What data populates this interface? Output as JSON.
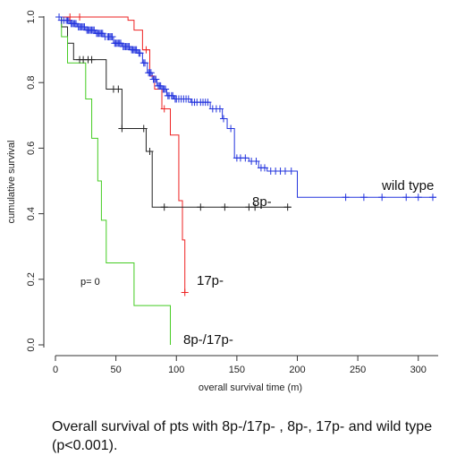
{
  "chart_data": {
    "type": "line",
    "title": "",
    "xlabel": "overall survival time (m)",
    "ylabel": "cumulative survival",
    "xlim": [
      0,
      320
    ],
    "ylim": [
      0,
      1.0
    ],
    "x_ticks": [
      "0",
      "50",
      "100",
      "150",
      "200",
      "250",
      "300"
    ],
    "y_ticks": [
      "0.0",
      "0.2",
      "0.4",
      "0.6",
      "0.8",
      "1.0"
    ],
    "grid": false,
    "annotation": "p= 0",
    "series": [
      {
        "name": "wild type",
        "color": "#2233dd",
        "steps": [
          [
            0,
            1.0
          ],
          [
            5,
            0.99
          ],
          [
            12,
            0.98
          ],
          [
            18,
            0.97
          ],
          [
            25,
            0.96
          ],
          [
            33,
            0.95
          ],
          [
            40,
            0.94
          ],
          [
            48,
            0.92
          ],
          [
            55,
            0.91
          ],
          [
            62,
            0.9
          ],
          [
            68,
            0.89
          ],
          [
            72,
            0.86
          ],
          [
            76,
            0.83
          ],
          [
            80,
            0.81
          ],
          [
            84,
            0.79
          ],
          [
            88,
            0.78
          ],
          [
            92,
            0.76
          ],
          [
            98,
            0.75
          ],
          [
            112,
            0.74
          ],
          [
            128,
            0.72
          ],
          [
            138,
            0.69
          ],
          [
            142,
            0.66
          ],
          [
            148,
            0.57
          ],
          [
            160,
            0.56
          ],
          [
            168,
            0.54
          ],
          [
            175,
            0.53
          ],
          [
            200,
            0.45
          ],
          [
            315,
            0.45
          ]
        ],
        "censor_x": [
          3,
          5,
          7,
          9,
          10,
          11,
          13,
          14,
          15,
          16,
          17,
          19,
          20,
          21,
          22,
          23,
          24,
          26,
          27,
          28,
          29,
          30,
          31,
          32,
          34,
          35,
          36,
          37,
          38,
          39,
          41,
          43,
          44,
          45,
          46,
          47,
          49,
          50,
          51,
          52,
          53,
          54,
          56,
          57,
          58,
          59,
          60,
          61,
          63,
          64,
          65,
          66,
          67,
          69,
          70,
          73,
          74,
          77,
          78,
          79,
          81,
          82,
          83,
          85,
          86,
          87,
          89,
          90,
          91,
          93,
          94,
          96,
          97,
          99,
          100,
          102,
          104,
          106,
          108,
          110,
          113,
          115,
          117,
          120,
          122,
          124,
          126,
          130,
          133,
          136,
          139,
          145,
          150,
          153,
          157,
          162,
          166,
          170,
          173,
          178,
          182,
          186,
          190,
          195,
          240,
          255,
          270,
          290,
          300,
          312
        ],
        "label": "wild type"
      },
      {
        "name": "17p-",
        "color": "#ee2222",
        "steps": [
          [
            0,
            1.0
          ],
          [
            60,
            0.99
          ],
          [
            65,
            0.96
          ],
          [
            72,
            0.9
          ],
          [
            78,
            0.82
          ],
          [
            82,
            0.78
          ],
          [
            88,
            0.72
          ],
          [
            95,
            0.64
          ],
          [
            102,
            0.44
          ],
          [
            105,
            0.32
          ],
          [
            107,
            0.16
          ]
        ],
        "censor_x": [
          12,
          20,
          75,
          90,
          107
        ],
        "label": "17p-"
      },
      {
        "name": "8p-",
        "color": "#222222",
        "steps": [
          [
            0,
            1.0
          ],
          [
            5,
            0.97
          ],
          [
            10,
            0.92
          ],
          [
            15,
            0.87
          ],
          [
            42,
            0.78
          ],
          [
            55,
            0.66
          ],
          [
            75,
            0.59
          ],
          [
            80,
            0.42
          ],
          [
            195,
            0.42
          ]
        ],
        "censor_x": [
          20,
          23,
          27,
          30,
          48,
          52,
          55,
          73,
          78,
          90,
          120,
          140,
          160,
          165,
          192
        ],
        "label": "8p-"
      },
      {
        "name": "8p-/17p-",
        "color": "#44cc22",
        "steps": [
          [
            0,
            1.0
          ],
          [
            5,
            0.94
          ],
          [
            10,
            0.86
          ],
          [
            20,
            0.86
          ],
          [
            25,
            0.75
          ],
          [
            30,
            0.63
          ],
          [
            35,
            0.5
          ],
          [
            38,
            0.38
          ],
          [
            42,
            0.25
          ],
          [
            60,
            0.25
          ],
          [
            65,
            0.12
          ],
          [
            92,
            0.12
          ],
          [
            95,
            0.0
          ]
        ],
        "censor_x": [],
        "label": "8p-/17p-"
      }
    ]
  },
  "caption": "Overall survival of pts with 8p-/17p- , 8p-, 17p- and wild type (p<0.001)."
}
